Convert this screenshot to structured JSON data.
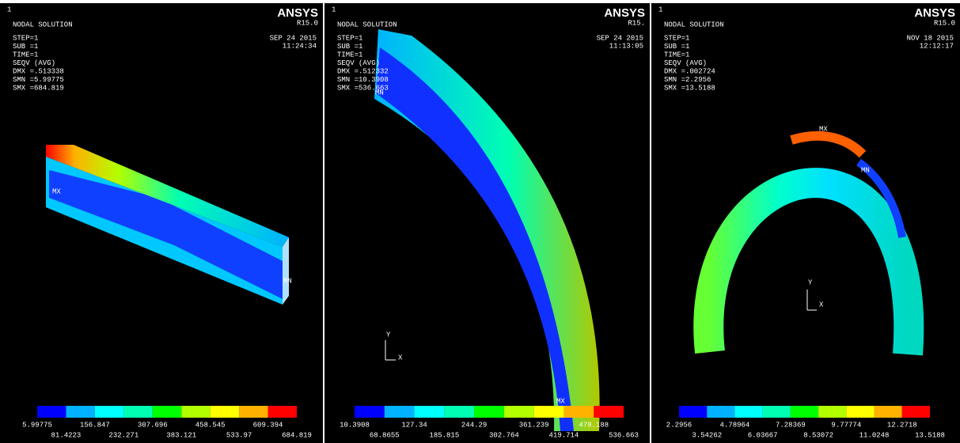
{
  "panels": [
    {
      "number": "1",
      "title": "NODAL SOLUTION",
      "info": [
        "STEP=1",
        "SUB =1",
        "TIME=1",
        "SEQV     (AVG)",
        "DMX =.513338",
        "SMN =5.99775",
        "SMX =684.819"
      ],
      "date": "SEP 24 2015",
      "time": "11:24:34",
      "brand": "ANSYS",
      "version": "R15.0",
      "legend_top": [
        "5.99775",
        "156.847",
        "307.696",
        "458.545",
        "609.394"
      ],
      "legend_bottom": [
        "81.4223",
        "232.271",
        "383.121",
        "533.97",
        "684.819"
      ],
      "markers": [
        "MX",
        "MN"
      ]
    },
    {
      "number": "1",
      "title": "NODAL SOLUTION",
      "info": [
        "STEP=1",
        "SUB =1",
        "TIME=1",
        "SEQV     (AVG)",
        "DMX =.512332",
        "SMN =10.3908",
        "SMX =536.663"
      ],
      "date": "SEP 24 2015",
      "time": "11:13:05",
      "brand": "ANSYS",
      "version": "R15.",
      "legend_top": [
        "10.3908",
        "127.34",
        "244.29",
        "361.239",
        "478.188"
      ],
      "legend_bottom": [
        "68.8655",
        "185.815",
        "302.764",
        "419.714",
        "536.663"
      ],
      "markers": [
        "MN",
        "MX",
        "Y",
        "X"
      ]
    },
    {
      "number": "1",
      "title": "NODAL SOLUTION",
      "info": [
        "STEP=1",
        "SUB =1",
        "TIME=1",
        "SEQV     (AVG)",
        "DMX =.002724",
        "SMN =2.2956",
        "SMX =13.5188"
      ],
      "date": "NOV 18 2015",
      "time": "12:12:17",
      "brand": "ANSYS",
      "version": "R15.0",
      "legend_top": [
        "2.2956",
        "4.78964",
        "7.28369",
        "9.77774",
        "12.2718"
      ],
      "legend_bottom": [
        "3.54262",
        "6.03667",
        "8.53072",
        "11.0248",
        "13.5188"
      ],
      "markers": [
        "MX",
        "MN",
        "Y",
        "X"
      ]
    }
  ]
}
